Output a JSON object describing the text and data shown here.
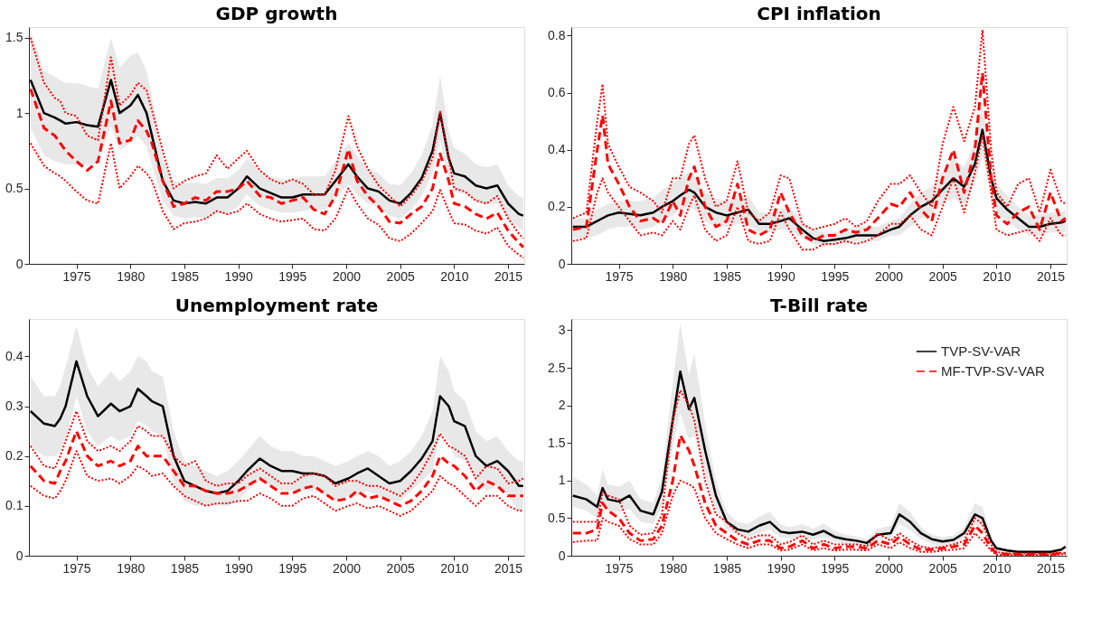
{
  "chart_data": [
    {
      "type": "line",
      "title": "GDP growth",
      "legend": false,
      "xlim": [
        1970.6,
        2016.5
      ],
      "xticks": [
        1975,
        1980,
        1985,
        1990,
        1995,
        2000,
        2005,
        2010,
        2015
      ],
      "ylim": [
        0,
        1.57
      ],
      "yticks": [
        0,
        0.5,
        1,
        1.5
      ],
      "grid": false,
      "x": [
        1970.75,
        1972,
        1973,
        1973.5,
        1974,
        1975,
        1976,
        1977,
        1978.2,
        1979,
        1980,
        1980.7,
        1981.5,
        1982,
        1983,
        1984,
        1985,
        1986,
        1987,
        1988,
        1989,
        1990,
        1990.8,
        1992,
        1993,
        1994,
        1995,
        1996,
        1997,
        1998,
        1999,
        2000.2,
        2001,
        2002,
        2003,
        2004,
        2005,
        2006,
        2007,
        2008,
        2008.7,
        2009.5,
        2010,
        2011,
        2012,
        2013,
        2014,
        2015,
        2016,
        2016.4
      ],
      "series": [
        {
          "color": "#000000",
          "line_style": "solid",
          "values": [
            1.22,
            1.0,
            0.97,
            0.95,
            0.93,
            0.94,
            0.92,
            0.91,
            1.22,
            1.0,
            1.05,
            1.12,
            1.0,
            0.85,
            0.55,
            0.42,
            0.4,
            0.41,
            0.4,
            0.44,
            0.44,
            0.5,
            0.58,
            0.5,
            0.47,
            0.44,
            0.44,
            0.46,
            0.46,
            0.46,
            0.55,
            0.66,
            0.58,
            0.5,
            0.48,
            0.42,
            0.4,
            0.47,
            0.57,
            0.75,
            1.0,
            0.7,
            0.6,
            0.58,
            0.52,
            0.5,
            0.52,
            0.4,
            0.33,
            0.32
          ],
          "lower": [
            0.9,
            0.72,
            0.68,
            0.67,
            0.66,
            0.66,
            0.66,
            0.66,
            0.92,
            0.75,
            0.8,
            0.85,
            0.78,
            0.65,
            0.42,
            0.32,
            0.3,
            0.31,
            0.3,
            0.34,
            0.34,
            0.38,
            0.46,
            0.38,
            0.36,
            0.34,
            0.34,
            0.35,
            0.36,
            0.36,
            0.43,
            0.53,
            0.46,
            0.4,
            0.38,
            0.32,
            0.3,
            0.36,
            0.45,
            0.6,
            0.82,
            0.56,
            0.48,
            0.46,
            0.41,
            0.39,
            0.4,
            0.3,
            0.24,
            0.22
          ],
          "upper": [
            1.55,
            1.28,
            1.24,
            1.22,
            1.2,
            1.2,
            1.18,
            1.16,
            1.5,
            1.3,
            1.38,
            1.4,
            1.28,
            1.1,
            0.7,
            0.55,
            0.53,
            0.54,
            0.53,
            0.57,
            0.57,
            0.62,
            0.7,
            0.62,
            0.58,
            0.56,
            0.56,
            0.58,
            0.58,
            0.58,
            0.68,
            0.8,
            0.72,
            0.63,
            0.6,
            0.53,
            0.52,
            0.6,
            0.72,
            0.92,
            1.25,
            0.88,
            0.77,
            0.73,
            0.66,
            0.64,
            0.66,
            0.52,
            0.45,
            0.44
          ]
        },
        {
          "color": "#ff0000",
          "line_style": "dashed",
          "values": [
            1.16,
            0.9,
            0.85,
            0.8,
            0.75,
            0.68,
            0.62,
            0.68,
            1.08,
            0.8,
            0.82,
            0.95,
            0.88,
            0.8,
            0.55,
            0.38,
            0.4,
            0.44,
            0.42,
            0.48,
            0.48,
            0.5,
            0.55,
            0.45,
            0.44,
            0.4,
            0.42,
            0.44,
            0.36,
            0.33,
            0.45,
            0.76,
            0.55,
            0.45,
            0.38,
            0.28,
            0.27,
            0.33,
            0.38,
            0.5,
            0.73,
            0.55,
            0.4,
            0.38,
            0.33,
            0.3,
            0.34,
            0.22,
            0.14,
            0.11
          ]
        },
        {
          "color": "#ff0000",
          "line_style": "dotted",
          "values": [
            1.5,
            1.2,
            1.1,
            1.08,
            1.0,
            0.98,
            0.85,
            0.82,
            1.37,
            1.05,
            1.12,
            1.2,
            1.15,
            1.02,
            0.75,
            0.5,
            0.55,
            0.58,
            0.6,
            0.72,
            0.63,
            0.7,
            0.75,
            0.62,
            0.56,
            0.53,
            0.56,
            0.53,
            0.46,
            0.46,
            0.62,
            0.98,
            0.78,
            0.63,
            0.52,
            0.45,
            0.38,
            0.45,
            0.55,
            0.7,
            1.01,
            0.7,
            0.5,
            0.48,
            0.42,
            0.4,
            0.45,
            0.3,
            0.2,
            0.17
          ]
        },
        {
          "color": "#ff0000",
          "line_style": "dotted",
          "values": [
            0.8,
            0.65,
            0.6,
            0.58,
            0.55,
            0.48,
            0.42,
            0.4,
            0.8,
            0.5,
            0.58,
            0.65,
            0.6,
            0.55,
            0.35,
            0.23,
            0.27,
            0.28,
            0.3,
            0.35,
            0.33,
            0.35,
            0.4,
            0.33,
            0.3,
            0.28,
            0.29,
            0.3,
            0.23,
            0.22,
            0.3,
            0.5,
            0.4,
            0.3,
            0.26,
            0.17,
            0.15,
            0.2,
            0.27,
            0.35,
            0.49,
            0.35,
            0.27,
            0.26,
            0.22,
            0.2,
            0.24,
            0.12,
            0.06,
            0.04
          ]
        }
      ]
    },
    {
      "type": "line",
      "title": "CPI inflation",
      "legend": false,
      "xlim": [
        1970.6,
        2016.5
      ],
      "xticks": [
        1975,
        1980,
        1985,
        1990,
        1995,
        2000,
        2005,
        2010,
        2015
      ],
      "ylim": [
        0,
        0.83
      ],
      "yticks": [
        0,
        0.2,
        0.4,
        0.6,
        0.8
      ],
      "grid": false,
      "x": [
        1970.75,
        1972,
        1973,
        1973.5,
        1974,
        1975,
        1976,
        1977,
        1978.2,
        1979,
        1980,
        1980.7,
        1981.5,
        1982,
        1983,
        1984,
        1985,
        1986,
        1987,
        1988,
        1989,
        1990,
        1990.8,
        1992,
        1993,
        1994,
        1995,
        1996,
        1997,
        1998,
        1999,
        2000.2,
        2001,
        2002,
        2003,
        2004,
        2005,
        2006,
        2007,
        2008,
        2008.7,
        2009.5,
        2010,
        2011,
        2012,
        2013,
        2014,
        2015,
        2016,
        2016.4
      ],
      "series": [
        {
          "color": "#000000",
          "line_style": "solid",
          "values": [
            0.13,
            0.13,
            0.15,
            0.16,
            0.17,
            0.18,
            0.175,
            0.17,
            0.18,
            0.2,
            0.22,
            0.24,
            0.26,
            0.25,
            0.2,
            0.18,
            0.17,
            0.18,
            0.19,
            0.14,
            0.14,
            0.15,
            0.16,
            0.12,
            0.09,
            0.08,
            0.085,
            0.09,
            0.1,
            0.1,
            0.1,
            0.12,
            0.13,
            0.17,
            0.2,
            0.22,
            0.26,
            0.3,
            0.27,
            0.35,
            0.47,
            0.3,
            0.23,
            0.19,
            0.16,
            0.13,
            0.13,
            0.14,
            0.145,
            0.15
          ],
          "lower": [
            0.09,
            0.09,
            0.1,
            0.11,
            0.12,
            0.13,
            0.13,
            0.12,
            0.13,
            0.15,
            0.17,
            0.19,
            0.2,
            0.19,
            0.15,
            0.13,
            0.13,
            0.14,
            0.14,
            0.11,
            0.11,
            0.12,
            0.12,
            0.09,
            0.07,
            0.06,
            0.065,
            0.07,
            0.08,
            0.08,
            0.08,
            0.1,
            0.1,
            0.13,
            0.16,
            0.17,
            0.21,
            0.23,
            0.21,
            0.28,
            0.38,
            0.24,
            0.18,
            0.15,
            0.12,
            0.1,
            0.1,
            0.11,
            0.11,
            0.11
          ],
          "upper": [
            0.16,
            0.16,
            0.19,
            0.2,
            0.21,
            0.22,
            0.22,
            0.22,
            0.23,
            0.26,
            0.28,
            0.3,
            0.32,
            0.31,
            0.25,
            0.23,
            0.22,
            0.23,
            0.24,
            0.18,
            0.18,
            0.19,
            0.2,
            0.15,
            0.12,
            0.11,
            0.11,
            0.12,
            0.13,
            0.13,
            0.13,
            0.15,
            0.16,
            0.21,
            0.25,
            0.27,
            0.32,
            0.37,
            0.34,
            0.43,
            0.56,
            0.37,
            0.28,
            0.24,
            0.2,
            0.17,
            0.17,
            0.18,
            0.18,
            0.19
          ]
        },
        {
          "color": "#ff0000",
          "line_style": "dashed",
          "values": [
            0.12,
            0.13,
            0.4,
            0.52,
            0.35,
            0.28,
            0.2,
            0.15,
            0.16,
            0.14,
            0.22,
            0.17,
            0.3,
            0.34,
            0.2,
            0.13,
            0.15,
            0.28,
            0.12,
            0.1,
            0.12,
            0.25,
            0.18,
            0.1,
            0.08,
            0.1,
            0.1,
            0.12,
            0.11,
            0.12,
            0.16,
            0.21,
            0.2,
            0.25,
            0.19,
            0.15,
            0.3,
            0.4,
            0.25,
            0.4,
            0.67,
            0.3,
            0.17,
            0.14,
            0.18,
            0.2,
            0.12,
            0.25,
            0.15,
            0.16
          ]
        },
        {
          "color": "#ff0000",
          "line_style": "dotted",
          "values": [
            0.16,
            0.18,
            0.5,
            0.63,
            0.42,
            0.34,
            0.27,
            0.25,
            0.22,
            0.18,
            0.3,
            0.3,
            0.42,
            0.45,
            0.3,
            0.2,
            0.22,
            0.36,
            0.18,
            0.15,
            0.18,
            0.31,
            0.3,
            0.14,
            0.12,
            0.13,
            0.14,
            0.16,
            0.13,
            0.15,
            0.22,
            0.28,
            0.28,
            0.31,
            0.25,
            0.2,
            0.42,
            0.55,
            0.43,
            0.55,
            0.82,
            0.4,
            0.25,
            0.2,
            0.28,
            0.3,
            0.18,
            0.33,
            0.22,
            0.21
          ]
        },
        {
          "color": "#ff0000",
          "line_style": "dotted",
          "values": [
            0.08,
            0.09,
            0.25,
            0.3,
            0.25,
            0.2,
            0.15,
            0.1,
            0.11,
            0.1,
            0.15,
            0.12,
            0.2,
            0.24,
            0.12,
            0.08,
            0.1,
            0.2,
            0.08,
            0.07,
            0.08,
            0.18,
            0.12,
            0.05,
            0.05,
            0.07,
            0.07,
            0.08,
            0.07,
            0.08,
            0.1,
            0.14,
            0.14,
            0.17,
            0.12,
            0.1,
            0.2,
            0.3,
            0.18,
            0.32,
            0.45,
            0.25,
            0.12,
            0.1,
            0.11,
            0.12,
            0.08,
            0.16,
            0.1,
            0.1
          ]
        }
      ]
    },
    {
      "type": "line",
      "title": "Unemployment rate",
      "legend": false,
      "xlim": [
        1970.6,
        2016.5
      ],
      "xticks": [
        1975,
        1980,
        1985,
        1990,
        1995,
        2000,
        2005,
        2010,
        2015
      ],
      "ylim": [
        0,
        0.475
      ],
      "yticks": [
        0,
        0.1,
        0.2,
        0.3,
        0.4
      ],
      "grid": false,
      "x": [
        1970.75,
        1972,
        1973,
        1973.5,
        1974,
        1975,
        1976,
        1977,
        1978.2,
        1979,
        1980,
        1980.7,
        1981.5,
        1982,
        1983,
        1984,
        1985,
        1986,
        1987,
        1988,
        1989,
        1990,
        1990.8,
        1992,
        1993,
        1994,
        1995,
        1996,
        1997,
        1998,
        1999,
        2000.2,
        2001,
        2002,
        2003,
        2004,
        2005,
        2006,
        2007,
        2008,
        2008.7,
        2009.5,
        2010,
        2011,
        2012,
        2013,
        2014,
        2015,
        2016,
        2016.4
      ],
      "series": [
        {
          "color": "#000000",
          "line_style": "solid",
          "values": [
            0.29,
            0.265,
            0.26,
            0.275,
            0.3,
            0.39,
            0.32,
            0.28,
            0.305,
            0.29,
            0.3,
            0.335,
            0.32,
            0.31,
            0.3,
            0.2,
            0.15,
            0.14,
            0.13,
            0.125,
            0.13,
            0.15,
            0.17,
            0.195,
            0.18,
            0.17,
            0.17,
            0.165,
            0.165,
            0.16,
            0.145,
            0.155,
            0.165,
            0.175,
            0.16,
            0.145,
            0.15,
            0.17,
            0.195,
            0.23,
            0.32,
            0.3,
            0.27,
            0.26,
            0.2,
            0.18,
            0.19,
            0.17,
            0.14,
            0.14
          ],
          "lower": [
            0.22,
            0.2,
            0.2,
            0.21,
            0.23,
            0.32,
            0.25,
            0.22,
            0.24,
            0.23,
            0.24,
            0.27,
            0.26,
            0.25,
            0.24,
            0.15,
            0.11,
            0.1,
            0.1,
            0.1,
            0.1,
            0.11,
            0.13,
            0.15,
            0.14,
            0.13,
            0.13,
            0.13,
            0.13,
            0.12,
            0.11,
            0.12,
            0.12,
            0.13,
            0.12,
            0.11,
            0.11,
            0.13,
            0.15,
            0.17,
            0.25,
            0.23,
            0.2,
            0.19,
            0.15,
            0.13,
            0.14,
            0.12,
            0.09,
            0.09
          ],
          "upper": [
            0.36,
            0.32,
            0.32,
            0.34,
            0.38,
            0.46,
            0.38,
            0.34,
            0.37,
            0.35,
            0.37,
            0.4,
            0.39,
            0.37,
            0.36,
            0.25,
            0.19,
            0.18,
            0.17,
            0.16,
            0.17,
            0.19,
            0.21,
            0.24,
            0.22,
            0.21,
            0.21,
            0.2,
            0.2,
            0.19,
            0.18,
            0.19,
            0.2,
            0.21,
            0.2,
            0.18,
            0.19,
            0.21,
            0.24,
            0.29,
            0.4,
            0.37,
            0.33,
            0.31,
            0.25,
            0.23,
            0.24,
            0.21,
            0.19,
            0.19
          ]
        },
        {
          "color": "#ff0000",
          "line_style": "dashed",
          "values": [
            0.18,
            0.15,
            0.145,
            0.17,
            0.19,
            0.25,
            0.2,
            0.18,
            0.19,
            0.18,
            0.19,
            0.22,
            0.2,
            0.2,
            0.2,
            0.17,
            0.14,
            0.14,
            0.13,
            0.125,
            0.125,
            0.13,
            0.14,
            0.155,
            0.14,
            0.125,
            0.125,
            0.135,
            0.14,
            0.125,
            0.11,
            0.115,
            0.13,
            0.115,
            0.12,
            0.11,
            0.1,
            0.11,
            0.13,
            0.16,
            0.2,
            0.185,
            0.18,
            0.16,
            0.13,
            0.15,
            0.14,
            0.12,
            0.12,
            0.12
          ]
        },
        {
          "color": "#ff0000",
          "line_style": "dotted",
          "values": [
            0.22,
            0.18,
            0.175,
            0.2,
            0.23,
            0.29,
            0.23,
            0.21,
            0.22,
            0.21,
            0.23,
            0.26,
            0.25,
            0.24,
            0.24,
            0.2,
            0.18,
            0.19,
            0.15,
            0.14,
            0.145,
            0.145,
            0.16,
            0.175,
            0.16,
            0.145,
            0.145,
            0.16,
            0.165,
            0.16,
            0.14,
            0.15,
            0.15,
            0.14,
            0.14,
            0.13,
            0.12,
            0.14,
            0.17,
            0.21,
            0.245,
            0.22,
            0.215,
            0.2,
            0.155,
            0.18,
            0.175,
            0.145,
            0.15,
            0.155
          ]
        },
        {
          "color": "#ff0000",
          "line_style": "dotted",
          "values": [
            0.14,
            0.12,
            0.115,
            0.13,
            0.15,
            0.21,
            0.16,
            0.15,
            0.155,
            0.145,
            0.16,
            0.18,
            0.17,
            0.16,
            0.165,
            0.14,
            0.12,
            0.11,
            0.1,
            0.105,
            0.105,
            0.11,
            0.11,
            0.125,
            0.115,
            0.1,
            0.1,
            0.115,
            0.12,
            0.105,
            0.09,
            0.1,
            0.105,
            0.095,
            0.1,
            0.09,
            0.08,
            0.09,
            0.11,
            0.13,
            0.16,
            0.145,
            0.14,
            0.12,
            0.1,
            0.12,
            0.12,
            0.1,
            0.09,
            0.09
          ]
        }
      ]
    },
    {
      "type": "line",
      "title": "T-Bill rate",
      "legend": "top right",
      "xlim": [
        1970.6,
        2016.5
      ],
      "xticks": [
        1975,
        1980,
        1985,
        1990,
        1995,
        2000,
        2005,
        2010,
        2015
      ],
      "ylim": [
        0,
        3.15
      ],
      "yticks": [
        0,
        0.5,
        1,
        1.5,
        2,
        2.5,
        3
      ],
      "grid": false,
      "x": [
        1970.75,
        1972,
        1973,
        1973.5,
        1974,
        1975,
        1976,
        1977,
        1978.2,
        1979,
        1980,
        1980.7,
        1981.5,
        1982,
        1983,
        1984,
        1985,
        1986,
        1987,
        1988,
        1989,
        1990,
        1990.8,
        1992,
        1993,
        1994,
        1995,
        1996,
        1997,
        1998,
        1999,
        2000.2,
        2001,
        2002,
        2003,
        2004,
        2005,
        2006,
        2007,
        2008,
        2008.7,
        2009.5,
        2010,
        2011,
        2012,
        2013,
        2014,
        2015,
        2016,
        2016.4
      ],
      "series": [
        {
          "name": "TVP-SV-VAR",
          "color": "#000000",
          "line_style": "solid",
          "values": [
            0.8,
            0.75,
            0.65,
            0.9,
            0.75,
            0.72,
            0.8,
            0.6,
            0.55,
            0.85,
            1.8,
            2.45,
            1.95,
            2.1,
            1.4,
            0.8,
            0.45,
            0.35,
            0.32,
            0.4,
            0.45,
            0.32,
            0.3,
            0.32,
            0.28,
            0.33,
            0.25,
            0.22,
            0.2,
            0.17,
            0.28,
            0.3,
            0.55,
            0.45,
            0.3,
            0.22,
            0.19,
            0.21,
            0.3,
            0.55,
            0.5,
            0.2,
            0.1,
            0.07,
            0.05,
            0.05,
            0.05,
            0.05,
            0.08,
            0.12
          ],
          "lower": [
            0.65,
            0.6,
            0.5,
            0.72,
            0.6,
            0.58,
            0.62,
            0.45,
            0.42,
            0.68,
            1.45,
            1.9,
            1.55,
            1.6,
            1.1,
            0.62,
            0.35,
            0.27,
            0.24,
            0.3,
            0.35,
            0.24,
            0.23,
            0.24,
            0.21,
            0.25,
            0.19,
            0.16,
            0.15,
            0.13,
            0.21,
            0.23,
            0.42,
            0.34,
            0.22,
            0.16,
            0.14,
            0.16,
            0.23,
            0.42,
            0.38,
            0.15,
            0.07,
            0.05,
            0.03,
            0.03,
            0.03,
            0.03,
            0.06,
            0.09
          ],
          "upper": [
            1.05,
            0.95,
            0.8,
            1.15,
            0.95,
            0.92,
            1.0,
            0.75,
            0.7,
            1.05,
            2.3,
            3.1,
            2.4,
            2.7,
            1.75,
            1.0,
            0.58,
            0.45,
            0.42,
            0.52,
            0.58,
            0.42,
            0.38,
            0.42,
            0.36,
            0.43,
            0.33,
            0.28,
            0.26,
            0.22,
            0.36,
            0.4,
            0.7,
            0.58,
            0.38,
            0.28,
            0.25,
            0.27,
            0.38,
            0.7,
            0.65,
            0.27,
            0.13,
            0.09,
            0.07,
            0.07,
            0.07,
            0.07,
            0.1,
            0.15
          ]
        },
        {
          "name": "MF-TVP-SV-VAR",
          "color": "#ff0000",
          "line_style": "dashed",
          "values": [
            0.3,
            0.3,
            0.35,
            0.7,
            0.6,
            0.5,
            0.3,
            0.2,
            0.22,
            0.4,
            1.0,
            1.6,
            1.4,
            1.2,
            0.7,
            0.4,
            0.3,
            0.2,
            0.15,
            0.2,
            0.2,
            0.1,
            0.12,
            0.2,
            0.1,
            0.15,
            0.1,
            0.12,
            0.12,
            0.1,
            0.2,
            0.15,
            0.25,
            0.15,
            0.08,
            0.08,
            0.1,
            0.12,
            0.15,
            0.4,
            0.3,
            0.1,
            0.03,
            0.02,
            0.02,
            0.02,
            0.02,
            0.02,
            0.03,
            0.03
          ]
        },
        {
          "color": "#ff0000",
          "line_style": "dotted",
          "values": [
            0.45,
            0.45,
            0.45,
            0.85,
            0.8,
            0.75,
            0.4,
            0.28,
            0.3,
            0.55,
            1.8,
            2.2,
            2.0,
            1.8,
            1.0,
            0.55,
            0.45,
            0.3,
            0.22,
            0.27,
            0.27,
            0.15,
            0.18,
            0.27,
            0.15,
            0.2,
            0.15,
            0.15,
            0.15,
            0.13,
            0.3,
            0.2,
            0.3,
            0.2,
            0.12,
            0.1,
            0.12,
            0.15,
            0.2,
            0.5,
            0.42,
            0.15,
            0.05,
            0.03,
            0.03,
            0.03,
            0.03,
            0.03,
            0.04,
            0.04
          ]
        },
        {
          "color": "#ff0000",
          "line_style": "dotted",
          "values": [
            0.18,
            0.2,
            0.2,
            0.5,
            0.45,
            0.4,
            0.22,
            0.15,
            0.15,
            0.3,
            0.8,
            1.0,
            0.95,
            0.9,
            0.5,
            0.3,
            0.22,
            0.15,
            0.1,
            0.15,
            0.15,
            0.07,
            0.08,
            0.15,
            0.07,
            0.1,
            0.07,
            0.08,
            0.08,
            0.07,
            0.15,
            0.1,
            0.18,
            0.1,
            0.05,
            0.05,
            0.07,
            0.08,
            0.1,
            0.3,
            0.2,
            0.07,
            0.01,
            0.01,
            0.01,
            0.01,
            0.01,
            0.01,
            0.02,
            0.02
          ]
        }
      ]
    }
  ]
}
